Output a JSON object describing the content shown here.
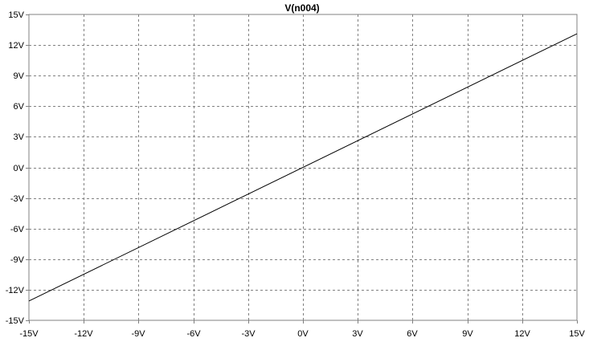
{
  "chart_data": {
    "type": "line",
    "title": "V(n004)",
    "xlim": [
      -15,
      15
    ],
    "ylim": [
      -15,
      15
    ],
    "xticks": [
      -15,
      -12,
      -9,
      -6,
      -3,
      0,
      3,
      6,
      9,
      12,
      15
    ],
    "yticks": [
      -15,
      -12,
      -9,
      -6,
      -3,
      0,
      3,
      6,
      9,
      12,
      15
    ],
    "xtick_labels": [
      "-15V",
      "-12V",
      "-9V",
      "-6V",
      "-3V",
      "0V",
      "3V",
      "6V",
      "9V",
      "12V",
      "15V"
    ],
    "ytick_labels": [
      "-15V",
      "-12V",
      "-9V",
      "-6V",
      "-3V",
      "0V",
      "3V",
      "6V",
      "9V",
      "12V",
      "15V"
    ],
    "grid": true,
    "series": [
      {
        "name": "V(n004)",
        "x": [
          -15,
          15
        ],
        "y": [
          -13.1,
          13.1
        ]
      }
    ],
    "colors": {
      "trace": "#000000",
      "grid": "#808080",
      "background": "#ffffff"
    }
  }
}
